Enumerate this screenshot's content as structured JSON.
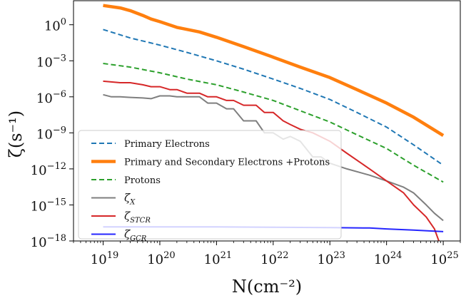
{
  "chart_data": {
    "type": "line",
    "xlabel": "N(cm⁻²)",
    "ylabel": "ζ(s⁻¹)",
    "x_scale": "log",
    "y_scale": "log",
    "xlim": [
      3e+18,
      2e+25
    ],
    "ylim": [
      1e-18,
      100.0
    ],
    "x_ticks": [
      {
        "value": 1e+19,
        "base": "10",
        "exp": "19"
      },
      {
        "value": 1e+20,
        "base": "10",
        "exp": "20"
      },
      {
        "value": 1e+21,
        "base": "10",
        "exp": "21"
      },
      {
        "value": 1e+22,
        "base": "10",
        "exp": "22"
      },
      {
        "value": 1e+23,
        "base": "10",
        "exp": "23"
      },
      {
        "value": 1e+24,
        "base": "10",
        "exp": "24"
      },
      {
        "value": 1e+25,
        "base": "10",
        "exp": "25"
      }
    ],
    "y_ticks": [
      {
        "value": 1,
        "base": "10",
        "exp": "0"
      },
      {
        "value": 0.001,
        "base": "10",
        "exp": "−3"
      },
      {
        "value": 1e-06,
        "base": "10",
        "exp": "−6"
      },
      {
        "value": 1e-09,
        "base": "10",
        "exp": "−9"
      },
      {
        "value": 1e-12,
        "base": "10",
        "exp": "−12"
      },
      {
        "value": 1e-15,
        "base": "10",
        "exp": "−15"
      },
      {
        "value": 1e-18,
        "base": "10",
        "exp": "−18"
      }
    ],
    "grid": false,
    "legend_position": "lower-left",
    "series": [
      {
        "name": "Primary Electrons",
        "sub": "",
        "color": "#1f77b4",
        "dash": "dashed",
        "width": 2,
        "opacity": 1,
        "x": [
          1e+19,
          3e+19,
          1e+20,
          3e+20,
          1e+21,
          3e+21,
          1e+22,
          3e+22,
          1e+23,
          3e+23,
          1e+24,
          3e+24,
          1e+25
        ],
        "y": [
          0.4,
          0.08,
          0.02,
          0.005,
          0.001,
          0.0002,
          3e-05,
          5e-06,
          6e-07,
          5e-08,
          3e-09,
          1e-10,
          2e-12
        ]
      },
      {
        "name": "Primary and Secondary Electrons +Protons",
        "sub": "",
        "color": "#ff7f0e",
        "dash": "solid",
        "width": 4.5,
        "opacity": 1,
        "x": [
          1e+19,
          2e+19,
          3e+19,
          5e+19,
          7e+19,
          1e+20,
          2e+20,
          5e+20,
          1e+21,
          3e+21,
          1e+22,
          3e+22,
          1e+23,
          3e+23,
          1e+24,
          3e+24,
          1e+25
        ],
        "y": [
          40,
          25,
          15,
          6,
          3,
          1.8,
          0.6,
          0.25,
          0.09,
          0.015,
          0.002,
          0.0003,
          4e-05,
          4e-06,
          3e-07,
          2e-08,
          6e-10
        ]
      },
      {
        "name": "Protons",
        "sub": "",
        "color": "#2ca02c",
        "dash": "dashed",
        "width": 2,
        "opacity": 1,
        "x": [
          1e+19,
          3e+19,
          1e+20,
          3e+20,
          1e+21,
          3e+21,
          1e+22,
          3e+22,
          1e+23,
          3e+23,
          1e+24,
          3e+24,
          1e+25
        ],
        "y": [
          0.0006,
          0.0003,
          0.0001,
          3e-05,
          1e-05,
          2.5e-06,
          5e-07,
          7e-08,
          8e-09,
          7e-10,
          5e-11,
          2e-12,
          8e-14
        ]
      },
      {
        "name": "ζ",
        "sub": "X",
        "color": "#7f7f7f",
        "dash": "solid",
        "width": 2,
        "opacity": 1,
        "x": [
          1e+19,
          1.4e+19,
          2e+19,
          3e+19,
          5e+19,
          7e+19,
          1e+20,
          1.5e+20,
          2e+20,
          3e+20,
          5e+20,
          7e+20,
          1e+21,
          1.5e+21,
          2e+21,
          3e+21,
          5e+21,
          7e+21,
          1e+22,
          1.5e+22,
          2e+22,
          3e+22,
          5e+22,
          7e+22,
          1e+23,
          2e+23,
          5e+23,
          1e+24,
          2e+24,
          3e+24,
          5e+24,
          7e+24,
          1e+25
        ],
        "y": [
          1.5e-06,
          1e-06,
          1e-06,
          9e-07,
          8e-07,
          7e-07,
          1.2e-06,
          1.2e-06,
          1e-06,
          1e-06,
          1e-06,
          3e-07,
          3e-07,
          1e-07,
          1e-07,
          1e-08,
          1e-08,
          1e-09,
          1e-09,
          3e-10,
          5e-10,
          2e-10,
          1e-11,
          1e-11,
          3e-12,
          1e-12,
          3e-13,
          1e-13,
          3e-14,
          1e-14,
          1e-15,
          2e-16,
          5e-17
        ]
      },
      {
        "name": "ζ",
        "sub": "STCR",
        "color": "#d62728",
        "dash": "solid",
        "width": 2,
        "opacity": 1,
        "x": [
          1e+19,
          2e+19,
          3e+19,
          5e+19,
          7e+19,
          1e+20,
          1.5e+20,
          2e+20,
          3e+20,
          5e+20,
          7e+20,
          1e+21,
          1.5e+21,
          2e+21,
          3e+21,
          5e+21,
          7e+21,
          1e+22,
          1.5e+22,
          2e+22,
          3e+22,
          5e+22,
          1e+23,
          2e+23,
          5e+23,
          1e+24,
          2e+24,
          3e+24,
          5e+24,
          7e+24,
          1e+25
        ],
        "y": [
          2e-05,
          1.5e-05,
          1.5e-05,
          1e-05,
          7e-06,
          7e-06,
          4e-06,
          4e-06,
          2e-06,
          2e-06,
          1e-06,
          1e-06,
          5e-07,
          5e-07,
          2e-07,
          2e-07,
          5e-08,
          5e-08,
          1e-08,
          5e-09,
          2e-09,
          1e-09,
          2e-10,
          2e-11,
          1e-12,
          1e-13,
          1e-14,
          1e-15,
          1e-16,
          1e-17,
          1e-19
        ]
      },
      {
        "name": "ζ",
        "sub": "GCR",
        "color": "#0000ff",
        "dash": "solid",
        "width": 2,
        "opacity": 0.85,
        "x": [
          1e+19,
          1e+20,
          1e+21,
          1e+22,
          1e+23,
          5e+23,
          1e+24,
          3e+24,
          1e+25
        ],
        "y": [
          1.5e-17,
          1.5e-17,
          1.5e-17,
          1.4e-17,
          1.3e-17,
          1.2e-17,
          1e-17,
          8e-18,
          6e-18
        ]
      }
    ]
  }
}
